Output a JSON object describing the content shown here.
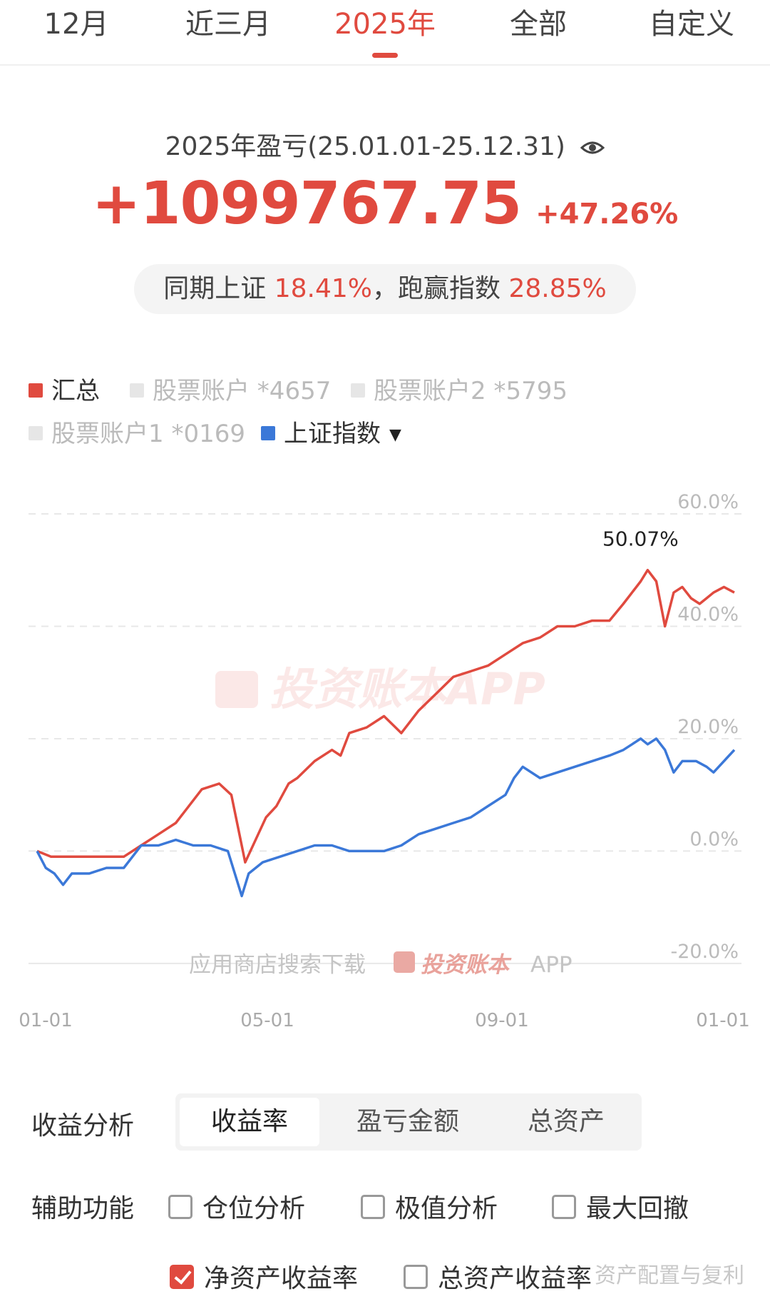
{
  "tabs": [
    {
      "label": "12月",
      "active": false
    },
    {
      "label": "近三月",
      "active": false
    },
    {
      "label": "2025年",
      "active": true
    },
    {
      "label": "全部",
      "active": false
    },
    {
      "label": "自定义",
      "active": false
    }
  ],
  "summary": {
    "period_title": "2025年盈亏(25.01.01-25.12.31)",
    "pnl_amount": "+1099767.75",
    "pnl_rate": "+47.26%",
    "compare_prefix": "同期上证",
    "index_return": "18.41%",
    "compare_mid": "，跑赢指数",
    "outperform": "28.85%"
  },
  "legend": [
    {
      "label": "汇总",
      "color": "#e04a3f",
      "on": true
    },
    {
      "label": "股票账户 *4657",
      "color": "#e6e6e6",
      "on": false
    },
    {
      "label": "股票账户2 *5795",
      "color": "#e6e6e6",
      "on": false
    },
    {
      "label": "股票账户1 *0169",
      "color": "#e6e6e6",
      "on": false
    },
    {
      "label": "上证指数",
      "color": "#3b78d8",
      "on": true,
      "caret": "▼"
    }
  ],
  "chart_data": {
    "type": "line",
    "x_tick_labels": [
      "01-01",
      "05-01",
      "09-01",
      "01-01"
    ],
    "y_tick_labels": [
      "60.0%",
      "40.0%",
      "20.0%",
      "0.0%",
      "-20.0%"
    ],
    "ylim": [
      -20,
      60
    ],
    "grid": true,
    "peak_annotation": "50.07%",
    "watermark_center": "投资账本APP",
    "watermark_bottom_prefix": "应用商店搜索下载",
    "watermark_bottom_brand": "投资账本",
    "watermark_bottom_suffix": "APP",
    "series": [
      {
        "name": "汇总",
        "color": "#e04a3f",
        "x": [
          0,
          8,
          20,
          50,
          60,
          70,
          80,
          95,
          105,
          112,
          120,
          132,
          138,
          145,
          150,
          160,
          170,
          175,
          180,
          190,
          200,
          210,
          220,
          230,
          240,
          250,
          260,
          270,
          280,
          290,
          300,
          310,
          320,
          330,
          338,
          343,
          348,
          352,
          357,
          362,
          367,
          372,
          377,
          382,
          386,
          390,
          396,
          402
        ],
        "y": [
          0,
          -1,
          -1,
          -1,
          1,
          3,
          5,
          11,
          12,
          10,
          -2,
          6,
          8,
          12,
          13,
          16,
          18,
          17,
          21,
          22,
          24,
          21,
          25,
          28,
          31,
          32,
          33,
          35,
          37,
          38,
          40,
          40,
          41,
          41,
          44,
          46,
          48,
          50,
          48,
          40,
          46,
          47,
          45,
          44,
          45,
          46,
          47,
          46
        ]
      },
      {
        "name": "上证指数",
        "color": "#3b78d8",
        "x": [
          0,
          5,
          10,
          15,
          20,
          30,
          40,
          50,
          55,
          60,
          70,
          80,
          90,
          100,
          110,
          118,
          122,
          130,
          140,
          150,
          160,
          170,
          180,
          190,
          200,
          210,
          220,
          230,
          240,
          250,
          260,
          270,
          275,
          280,
          290,
          300,
          310,
          320,
          330,
          338,
          343,
          348,
          352,
          357,
          362,
          367,
          372,
          380,
          386,
          390,
          396,
          402
        ],
        "y": [
          0,
          -3,
          -4,
          -6,
          -4,
          -4,
          -3,
          -3,
          -1,
          1,
          1,
          2,
          1,
          1,
          0,
          -8,
          -4,
          -2,
          -1,
          0,
          1,
          1,
          0,
          0,
          0,
          1,
          3,
          4,
          5,
          6,
          8,
          10,
          13,
          15,
          13,
          14,
          15,
          16,
          17,
          18,
          19,
          20,
          19,
          20,
          18,
          14,
          16,
          16,
          15,
          14,
          16,
          18
        ]
      }
    ]
  },
  "controls": {
    "analysis_label": "收益分析",
    "segments": [
      {
        "label": "收益率",
        "active": true
      },
      {
        "label": "盈亏金额",
        "active": false
      },
      {
        "label": "总资产",
        "active": false
      }
    ],
    "aux_label": "辅助功能",
    "checkboxes": [
      {
        "label": "仓位分析",
        "checked": false
      },
      {
        "label": "极值分析",
        "checked": false
      },
      {
        "label": "最大回撤",
        "checked": false
      },
      {
        "label": "净资产收益率",
        "checked": true
      },
      {
        "label": "总资产收益率",
        "checked": false
      }
    ]
  },
  "footer_watermark": "资产配置与复利"
}
